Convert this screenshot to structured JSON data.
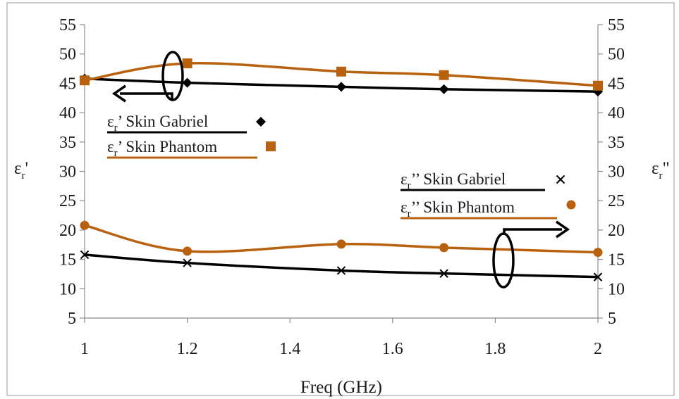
{
  "chart_data": {
    "type": "line",
    "x": [
      1,
      1.2,
      1.5,
      1.7,
      2
    ],
    "xlim": [
      1,
      2
    ],
    "x_ticks": [
      "1",
      "1.2",
      "1.4",
      "1.6",
      "1.8",
      "2"
    ],
    "xlabel": "Freq (GHz)",
    "ylim": [
      5,
      55
    ],
    "y_ticks": [
      "5",
      "10",
      "15",
      "20",
      "25",
      "30",
      "35",
      "40",
      "45",
      "50",
      "55"
    ],
    "ylabel_left": {
      "base": "ε",
      "sub": "r",
      "suffix": "'"
    },
    "ylabel_right": {
      "base": "ε",
      "sub": "r",
      "suffix": "\""
    },
    "grid": false,
    "series": [
      {
        "name": "εr’ Skin Gabriel",
        "label_base": "ε",
        "label_sub": "r",
        "label_rest": "’ Skin Gabriel",
        "color": "#000000",
        "marker": "diamond",
        "values": [
          45.8,
          45.1,
          44.4,
          44.0,
          43.6
        ]
      },
      {
        "name": "εr’ Skin Phantom",
        "label_base": "ε",
        "label_sub": "r",
        "label_rest": "’ Skin Phantom",
        "color": "#b8620f",
        "marker": "square",
        "values": [
          45.5,
          48.4,
          47.0,
          46.4,
          44.6
        ]
      },
      {
        "name": "εr’’ Skin Gabriel",
        "label_base": "ε",
        "label_sub": "r",
        "label_rest": "’’ Skin Gabriel",
        "color": "#000000",
        "marker": "x",
        "values": [
          15.8,
          14.4,
          13.1,
          12.6,
          12.0
        ]
      },
      {
        "name": "εr’’ Skin Phantom",
        "label_base": "ε",
        "label_sub": "r",
        "label_rest": "’’ Skin Phantom",
        "color": "#b8620f",
        "marker": "circle",
        "values": [
          20.8,
          16.4,
          17.6,
          17.0,
          16.2
        ]
      }
    ]
  }
}
